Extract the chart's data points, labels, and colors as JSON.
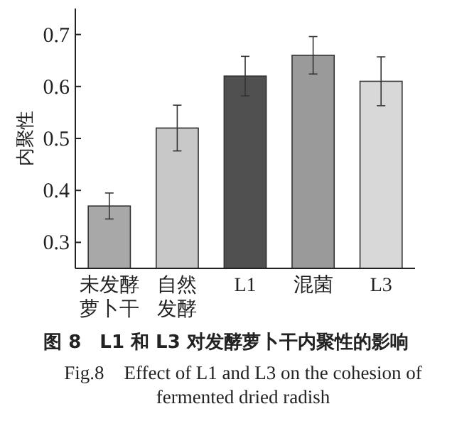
{
  "chart_data": {
    "type": "bar",
    "title": "图 8　L1 和 L3 对发酵萝卜干内聚性的影响",
    "subtitle": "Fig.8　Effect of L1 and L3 on the cohesion of fermented dried radish",
    "ylabel": "内聚性",
    "categories": [
      "未发酵萝卜干",
      "自然发酵",
      "L1",
      "混菌",
      "L3"
    ],
    "values": [
      0.37,
      0.52,
      0.62,
      0.66,
      0.61
    ],
    "errors": [
      0.025,
      0.044,
      0.038,
      0.036,
      0.047
    ],
    "colors": [
      "#a8a8a8",
      "#c8c8c8",
      "#505050",
      "#9a9a9a",
      "#d8d8d8"
    ],
    "ylim": [
      0.25,
      0.75
    ],
    "yticks": [
      0.3,
      0.4,
      0.5,
      0.6,
      0.7
    ],
    "grid": false
  }
}
